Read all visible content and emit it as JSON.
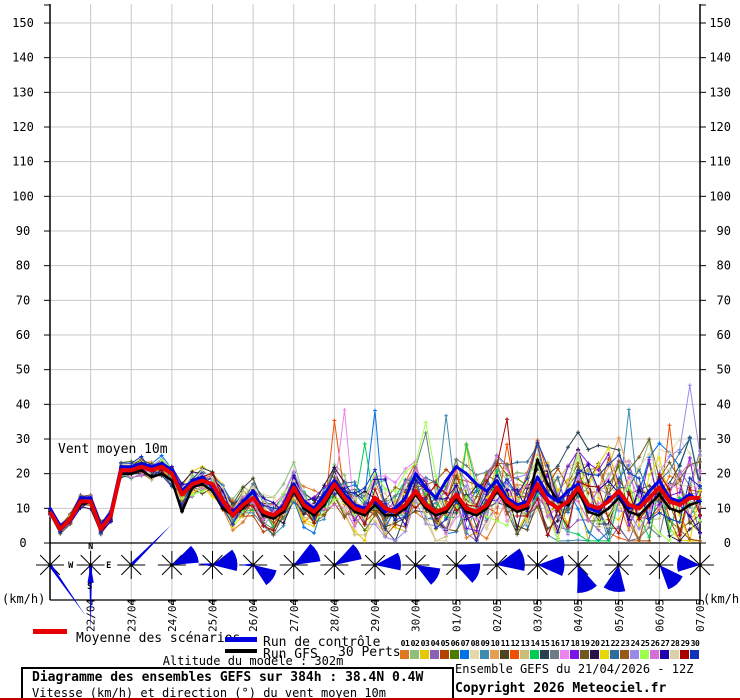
{
  "chart_data": {
    "type": "line",
    "title": "Vent moyen 10m",
    "run_base": "21/04/2026 - 12Z",
    "hours_total": 384,
    "hours_step": 6,
    "ylim": [
      0,
      155
    ],
    "yticks": [
      0,
      10,
      20,
      30,
      40,
      50,
      60,
      70,
      80,
      90,
      100,
      110,
      120,
      130,
      140,
      150
    ],
    "x_dates": [
      "22/04",
      "23/04",
      "24/04",
      "25/04",
      "26/04",
      "27/04",
      "28/04",
      "29/04",
      "30/04",
      "01/05",
      "02/05",
      "03/05",
      "04/05",
      "05/05",
      "06/05",
      "07/05"
    ],
    "grid": true,
    "series": [
      {
        "name": "Moyenne des scénarios",
        "color": "#e80000",
        "width": 4,
        "values": [
          9,
          4,
          7,
          12,
          12,
          4,
          8,
          21,
          21,
          22,
          21,
          22,
          20,
          14,
          17,
          18,
          17,
          12,
          8,
          11,
          13,
          9,
          8,
          10,
          16,
          11,
          9,
          12,
          17,
          13,
          10,
          9,
          13,
          10,
          9,
          11,
          15,
          11,
          9,
          10,
          14,
          10,
          9,
          11,
          16,
          12,
          10,
          11,
          17,
          12,
          10,
          12,
          16,
          11,
          10,
          12,
          15,
          11,
          10,
          13,
          16,
          12,
          11,
          13,
          13
        ]
      },
      {
        "name": "Run de contrôle",
        "color": "#0000e0",
        "width": 3,
        "values": [
          10,
          5,
          7,
          13,
          13,
          5,
          9,
          22,
          22,
          23,
          22,
          23,
          21,
          15,
          18,
          19,
          16,
          11,
          9,
          12,
          15,
          9,
          8,
          11,
          17,
          12,
          10,
          14,
          18,
          14,
          11,
          10,
          12,
          9,
          10,
          13,
          20,
          16,
          13,
          18,
          22,
          20,
          17,
          15,
          18,
          13,
          11,
          12,
          19,
          14,
          12,
          15,
          17,
          10,
          9,
          13,
          14,
          10,
          11,
          15,
          18,
          13,
          12,
          14,
          12
        ]
      },
      {
        "name": "Run GFS",
        "color": "#000000",
        "width": 2.5,
        "values": [
          9,
          4,
          7,
          11,
          12,
          4,
          8,
          20,
          20,
          21,
          19,
          20,
          18,
          9,
          16,
          17,
          15,
          10,
          8,
          10,
          13,
          8,
          7,
          9,
          15,
          10,
          8,
          11,
          16,
          12,
          9,
          8,
          11,
          8,
          8,
          10,
          14,
          10,
          8,
          9,
          13,
          9,
          8,
          10,
          15,
          11,
          9,
          10,
          24,
          17,
          12,
          11,
          15,
          9,
          8,
          10,
          13,
          9,
          8,
          11,
          14,
          10,
          9,
          11,
          12
        ]
      }
    ],
    "members": {
      "count": 30,
      "ids": [
        "01",
        "02",
        "03",
        "04",
        "05",
        "06",
        "07",
        "08",
        "09",
        "10",
        "11",
        "12",
        "13",
        "14",
        "15",
        "16",
        "17",
        "18",
        "19",
        "20",
        "21",
        "22",
        "23",
        "24",
        "25",
        "26",
        "27",
        "28",
        "29",
        "30"
      ],
      "colors": [
        "#e07820",
        "#8fbf78",
        "#e6c800",
        "#8a5fb4",
        "#b24400",
        "#4e7a00",
        "#0072e8",
        "#e4d8a8",
        "#3e8cb0",
        "#e2a050",
        "#4e4420",
        "#f05000",
        "#ccbc7a",
        "#00cc55",
        "#28414f",
        "#6e7d85",
        "#ee82ee",
        "#7b12e8",
        "#70591f",
        "#281048",
        "#e8d800",
        "#2a6e9e",
        "#96591a",
        "#9a8ae8",
        "#9cff4c",
        "#d66ed6",
        "#2200aa",
        "#dcd0a8",
        "#aa0000",
        "#1133bb"
      ],
      "gen": {
        "seed": 1234567,
        "seed_step": 424241,
        "amp_base": 1.0,
        "amp_grow": 11,
        "amp_pow": 1.2,
        "smooth": 0.55,
        "spike_p": 0.009,
        "spike_min": 10,
        "spike_span": 15,
        "vmin": 0.6,
        "vmax": 45.5
      }
    },
    "wind_roses": [
      {
        "type": "needle",
        "angle": 55,
        "len": 62
      },
      {
        "type": "needle",
        "angle": 90,
        "len": 66,
        "wedge": {
          "angle": 90,
          "hw": 10,
          "r": 18
        },
        "compass": true
      },
      {
        "type": "needle",
        "angle": -45,
        "len": 58
      },
      {
        "type": "wedge",
        "angle": -25,
        "hw": 20,
        "r": 27
      },
      {
        "type": "wedge",
        "angle": -12,
        "hw": 26,
        "r": 25,
        "tail": {
          "angle": 185,
          "len": 15
        }
      },
      {
        "type": "wedge",
        "angle": 35,
        "hw": 22,
        "r": 24,
        "tail": {
          "angle": 180,
          "len": 13
        }
      },
      {
        "type": "wedge",
        "angle": -30,
        "hw": 22,
        "r": 27
      },
      {
        "type": "wedge",
        "angle": -30,
        "hw": 18,
        "r": 28
      },
      {
        "type": "wedge",
        "angle": -8,
        "hw": 20,
        "r": 26
      },
      {
        "type": "wedge",
        "angle": 30,
        "hw": 22,
        "r": 25
      },
      {
        "type": "wedge",
        "angle": 22,
        "hw": 26,
        "r": 24
      },
      {
        "type": "wedge",
        "angle": -12,
        "hw": 24,
        "r": 28
      },
      {
        "type": "wedge",
        "angle": 2,
        "hw": 22,
        "r": 27
      },
      {
        "type": "wedge",
        "angle": 70,
        "hw": 22,
        "r": 28
      },
      {
        "type": "wedge",
        "angle": 100,
        "hw": 24,
        "r": 27
      },
      {
        "type": "wedge",
        "angle": 48,
        "hw": 22,
        "r": 26
      },
      {
        "type": "wedge",
        "angle": 185,
        "hw": 22,
        "r": 23
      }
    ],
    "compass": {
      "n": "N",
      "e": "E",
      "s": "S",
      "w": "W"
    },
    "rose_color": "#0000dd"
  },
  "axis": {
    "unit_left": "(km/h)",
    "unit_right": "(km/h)"
  },
  "legend": {
    "mean_label": "Moyenne des scénarios",
    "control_label": "Run de contrôle",
    "gfs_label": "Run GFS",
    "mean_color": "#e80000",
    "control_color": "#0000e0",
    "gfs_color": "#000000"
  },
  "perts": {
    "label": "30 Perts."
  },
  "footer": {
    "altitude": "Altitude du modele : 302m",
    "box_title": "Diagramme des ensembles GEFS sur 384h : 38.4N 0.4W",
    "box_subtitle": "Vitesse (km/h) et direction (°) du vent moyen 10m",
    "run_info": "Ensemble GEFS du 21/04/2026 - 12Z",
    "copyright": "Copyright 2026 Meteociel.fr"
  }
}
